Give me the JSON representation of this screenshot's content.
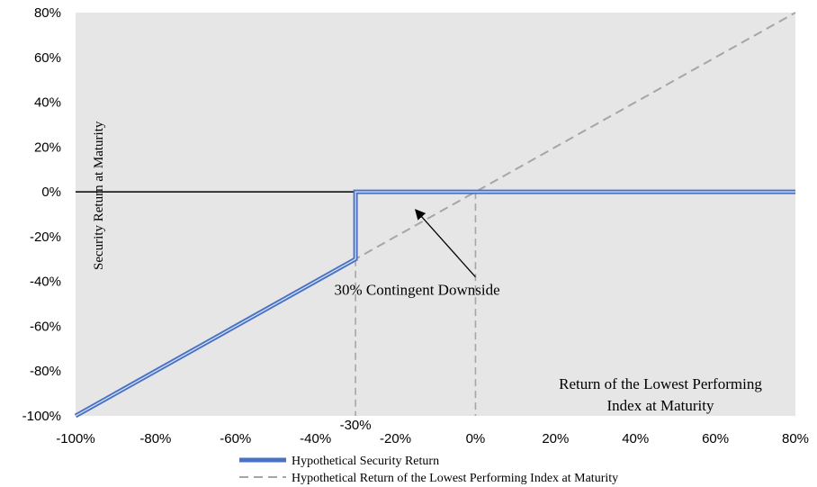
{
  "chart_data": {
    "type": "line",
    "title": "",
    "xlabel_lines": [
      "Return of the Lowest Performing",
      "Index at Maturity"
    ],
    "ylabel": "Security Return at Maturity",
    "xlim": [
      -100,
      80
    ],
    "ylim": [
      -100,
      80
    ],
    "x_ticks": [
      "-100%",
      "-80%",
      "-60%",
      "-40%",
      "-20%",
      "0%",
      "20%",
      "40%",
      "60%",
      "80%"
    ],
    "y_ticks": [
      "80%",
      "60%",
      "40%",
      "20%",
      "0%",
      "-20%",
      "-40%",
      "-60%",
      "-80%",
      "-100%"
    ],
    "x_tick_values": [
      -100,
      -80,
      -60,
      -40,
      -20,
      0,
      20,
      40,
      60,
      80
    ],
    "y_tick_values": [
      80,
      60,
      40,
      20,
      0,
      -20,
      -40,
      -60,
      -80,
      -100
    ],
    "series": [
      {
        "name": "Hypothetical Security Return",
        "color": "#4a72c4",
        "style": "solid",
        "points": [
          [
            -100,
            -100
          ],
          [
            -30,
            -30
          ],
          [
            -30,
            0
          ],
          [
            80,
            0
          ]
        ]
      },
      {
        "name": "Hypothetical Return of the Lowest Performing Index at Maturity",
        "color": "#a6a6a6",
        "style": "dashed",
        "points": [
          [
            -100,
            -100
          ],
          [
            80,
            80
          ]
        ]
      }
    ],
    "annotations": {
      "threshold_label": "-30%",
      "threshold_x": -30,
      "threshold_y": -30,
      "zero_x": 0,
      "arrow_text": "30% Contingent Downside",
      "arrow_text_at": [
        -11,
        -46
      ],
      "arrow_from": [
        0,
        -38
      ],
      "arrow_to": [
        -15,
        -8
      ]
    },
    "legend_position": "bottom-center",
    "plot_background": "#e6e6e6",
    "zero_line_color": "#000000"
  }
}
